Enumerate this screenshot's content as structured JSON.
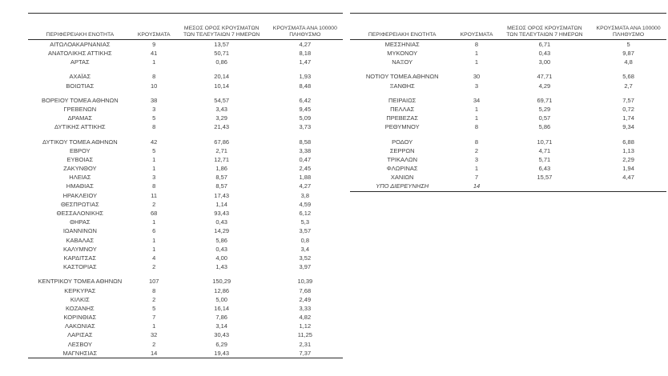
{
  "colors": {
    "background": "#ffffff",
    "text": "#3f3f3f",
    "rule_line": "#2b2b2b"
  },
  "headers": {
    "region": "ΠΕΡΙΦΕΡΕΙΑΚΗ ΕΝΟΤΗΤΑ",
    "cases": "ΚΡΟΥΣΜΑΤΑ",
    "avg7": "ΜΕΣΟΣ ΟΡΟΣ ΚΡΟΥΣΜΑΤΩΝ ΤΩΝ ΤΕΛΕΥΤΑΙΩΝ 7 ΗΜΕΡΩΝ",
    "per100k": "ΚΡΟΥΣΜΑΤΑ ΑΝΑ 100000 ΠΛΗΘΥΣΜΟ"
  },
  "left_table": {
    "rows": [
      {
        "region": "ΑΙΤΩΛΟΑΚΑΡΝΑΝΙΑΣ",
        "cases": "9",
        "avg7": "13,57",
        "per100k": "4,27"
      },
      {
        "region": "ΑΝΑΤΟΛΙΚΗΣ ΑΤΤΙΚΗΣ",
        "cases": "41",
        "avg7": "50,71",
        "per100k": "8,18"
      },
      {
        "region": "ΑΡΤΑΣ",
        "cases": "1",
        "avg7": "0,86",
        "per100k": "1,47"
      },
      {
        "gap": true
      },
      {
        "region": "ΑΧΑΪΑΣ",
        "cases": "8",
        "avg7": "20,14",
        "per100k": "1,93"
      },
      {
        "region": "ΒΟΙΩΤΙΑΣ",
        "cases": "10",
        "avg7": "10,14",
        "per100k": "8,48"
      },
      {
        "gap": true
      },
      {
        "region": "ΒΟΡΕΙΟΥ ΤΟΜΕΑ ΑΘΗΝΩΝ",
        "cases": "38",
        "avg7": "54,57",
        "per100k": "6,42"
      },
      {
        "region": "ΓΡΕΒΕΝΩΝ",
        "cases": "3",
        "avg7": "3,43",
        "per100k": "9,45"
      },
      {
        "region": "ΔΡΑΜΑΣ",
        "cases": "5",
        "avg7": "3,29",
        "per100k": "5,09"
      },
      {
        "region": "ΔΥΤΙΚΗΣ ΑΤΤΙΚΗΣ",
        "cases": "8",
        "avg7": "21,43",
        "per100k": "3,73"
      },
      {
        "gap": true
      },
      {
        "region": "ΔΥΤΙΚΟΥ ΤΟΜΕΑ ΑΘΗΝΩΝ",
        "cases": "42",
        "avg7": "67,86",
        "per100k": "8,58"
      },
      {
        "region": "ΕΒΡΟΥ",
        "cases": "5",
        "avg7": "2,71",
        "per100k": "3,38"
      },
      {
        "region": "ΕΥΒΟΙΑΣ",
        "cases": "1",
        "avg7": "12,71",
        "per100k": "0,47"
      },
      {
        "region": "ΖΑΚΥΝΘΟΥ",
        "cases": "1",
        "avg7": "1,86",
        "per100k": "2,45"
      },
      {
        "region": "ΗΛΕΙΑΣ",
        "cases": "3",
        "avg7": "8,57",
        "per100k": "1,88"
      },
      {
        "region": "ΗΜΑΘΙΑΣ",
        "cases": "8",
        "avg7": "8,57",
        "per100k": "4,27"
      },
      {
        "region": "ΗΡΑΚΛΕΙΟΥ",
        "cases": "11",
        "avg7": "17,43",
        "per100k": "3,8"
      },
      {
        "region": "ΘΕΣΠΡΩΤΙΑΣ",
        "cases": "2",
        "avg7": "1,14",
        "per100k": "4,59"
      },
      {
        "region": "ΘΕΣΣΑΛΟΝΙΚΗΣ",
        "cases": "68",
        "avg7": "93,43",
        "per100k": "6,12"
      },
      {
        "region": "ΘΗΡΑΣ",
        "cases": "1",
        "avg7": "0,43",
        "per100k": "5,3"
      },
      {
        "region": "ΙΩΑΝΝΙΝΩΝ",
        "cases": "6",
        "avg7": "14,29",
        "per100k": "3,57"
      },
      {
        "region": "ΚΑΒΑΛΑΣ",
        "cases": "1",
        "avg7": "5,86",
        "per100k": "0,8"
      },
      {
        "region": "ΚΑΛΥΜΝΟΥ",
        "cases": "1",
        "avg7": "0,43",
        "per100k": "3,4"
      },
      {
        "region": "ΚΑΡΔΙΤΣΑΣ",
        "cases": "4",
        "avg7": "4,00",
        "per100k": "3,52"
      },
      {
        "region": "ΚΑΣΤΟΡΙΑΣ",
        "cases": "2",
        "avg7": "1,43",
        "per100k": "3,97"
      },
      {
        "gap": true
      },
      {
        "region": "ΚΕΝΤΡΙΚΟΥ ΤΟΜΕΑ ΑΘΗΝΩΝ",
        "cases": "107",
        "avg7": "150,29",
        "per100k": "10,39"
      },
      {
        "region": "ΚΕΡΚΥΡΑΣ",
        "cases": "8",
        "avg7": "12,86",
        "per100k": "7,68"
      },
      {
        "region": "ΚΙΛΚΙΣ",
        "cases": "2",
        "avg7": "5,00",
        "per100k": "2,49"
      },
      {
        "region": "ΚΟΖΑΝΗΣ",
        "cases": "5",
        "avg7": "16,14",
        "per100k": "3,33"
      },
      {
        "region": "ΚΟΡΙΝΘΙΑΣ",
        "cases": "7",
        "avg7": "7,86",
        "per100k": "4,82"
      },
      {
        "region": "ΛΑΚΩΝΙΑΣ",
        "cases": "1",
        "avg7": "3,14",
        "per100k": "1,12"
      },
      {
        "region": "ΛΑΡΙΣΑΣ",
        "cases": "32",
        "avg7": "30,43",
        "per100k": "11,25"
      },
      {
        "region": "ΛΕΣΒΟΥ",
        "cases": "2",
        "avg7": "6,29",
        "per100k": "2,31"
      },
      {
        "region": "ΜΑΓΝΗΣΙΑΣ",
        "cases": "14",
        "avg7": "19,43",
        "per100k": "7,37"
      }
    ]
  },
  "right_table": {
    "rows": [
      {
        "region": "ΜΕΣΣΗΝΙΑΣ",
        "cases": "8",
        "avg7": "6,71",
        "per100k": "5"
      },
      {
        "region": "ΜΥΚΟΝΟΥ",
        "cases": "1",
        "avg7": "0,43",
        "per100k": "9,87"
      },
      {
        "region": "ΝΑΞΟΥ",
        "cases": "1",
        "avg7": "3,00",
        "per100k": "4,8"
      },
      {
        "gap": true
      },
      {
        "region": "ΝΟΤΙΟΥ ΤΟΜΕΑ ΑΘΗΝΩΝ",
        "cases": "30",
        "avg7": "47,71",
        "per100k": "5,68"
      },
      {
        "region": "ΞΑΝΘΗΣ",
        "cases": "3",
        "avg7": "4,29",
        "per100k": "2,7"
      },
      {
        "gap": true
      },
      {
        "region": "ΠΕΙΡΑΙΩΣ",
        "cases": "34",
        "avg7": "69,71",
        "per100k": "7,57"
      },
      {
        "region": "ΠΕΛΛΑΣ",
        "cases": "1",
        "avg7": "5,29",
        "per100k": "0,72"
      },
      {
        "region": "ΠΡΕΒΕΖΑΣ",
        "cases": "1",
        "avg7": "0,57",
        "per100k": "1,74"
      },
      {
        "region": "ΡΕΘΥΜΝΟΥ",
        "cases": "8",
        "avg7": "5,86",
        "per100k": "9,34"
      },
      {
        "gap": true
      },
      {
        "region": "ΡΟΔΟΥ",
        "cases": "8",
        "avg7": "10,71",
        "per100k": "6,88"
      },
      {
        "region": "ΣΕΡΡΩΝ",
        "cases": "2",
        "avg7": "4,71",
        "per100k": "1,13"
      },
      {
        "region": "ΤΡΙΚΑΛΩΝ",
        "cases": "3",
        "avg7": "5,71",
        "per100k": "2,29"
      },
      {
        "region": "ΦΛΩΡΙΝΑΣ",
        "cases": "1",
        "avg7": "6,43",
        "per100k": "1,94"
      },
      {
        "region": "ΧΑΝΙΩΝ",
        "cases": "7",
        "avg7": "15,57",
        "per100k": "4,47"
      },
      {
        "region": "ΥΠΟ ΔΙΕΡΕΥΝΗΣΗ",
        "cases": "14",
        "avg7": "",
        "per100k": "",
        "italic": true
      }
    ]
  }
}
